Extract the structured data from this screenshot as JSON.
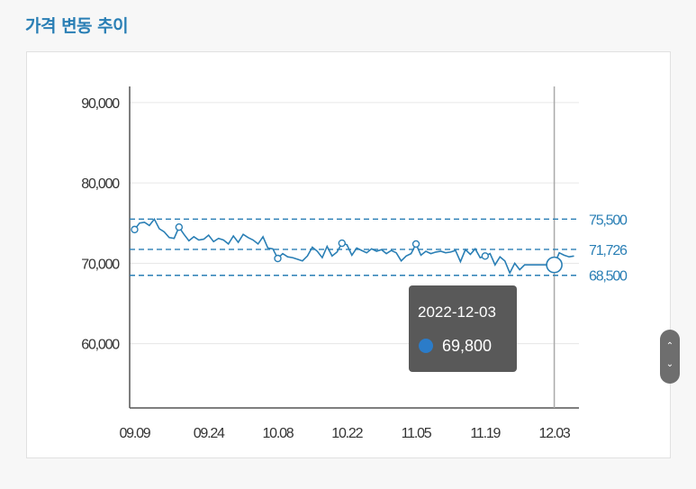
{
  "title": "가격 변동 추이",
  "colors": {
    "line": "#2a7fb5",
    "grid": "#e6e6e6",
    "axis": "#555555",
    "tooltip_bg": "#595959",
    "tooltip_dot": "#2b7cc9"
  },
  "tooltip": {
    "date": "2022-12-03",
    "value": "69,800"
  },
  "scroll_icons": {
    "up": "chevron-up-icon",
    "down": "chevron-down-icon"
  },
  "chart_data": {
    "type": "line",
    "y_ticks": [
      {
        "value": 90000,
        "label": "90,000"
      },
      {
        "value": 80000,
        "label": "80,000"
      },
      {
        "value": 70000,
        "label": "70,000"
      },
      {
        "value": 60000,
        "label": "60,000"
      }
    ],
    "ylim": [
      52000,
      92000
    ],
    "x_ticks": [
      "09.09",
      "09.24",
      "10.08",
      "10.22",
      "11.05",
      "11.19",
      "12.03"
    ],
    "x_tick_dates": [
      "2022-09-09",
      "2022-09-24",
      "2022-10-08",
      "2022-10-22",
      "2022-11-05",
      "2022-11-19",
      "2022-12-03"
    ],
    "xlim": [
      "2022-09-08",
      "2022-12-08"
    ],
    "reference_lines": [
      {
        "value": 75500,
        "label": "75,500"
      },
      {
        "value": 71726,
        "label": "71,726"
      },
      {
        "value": 68500,
        "label": "68,500"
      }
    ],
    "highlight": {
      "date": "2022-12-03",
      "value": 69800
    },
    "series": [
      {
        "points": [
          [
            "2022-09-09",
            74200
          ],
          [
            "2022-09-10",
            75000
          ],
          [
            "2022-09-11",
            75100
          ],
          [
            "2022-09-12",
            74700
          ],
          [
            "2022-09-13",
            75500
          ],
          [
            "2022-09-14",
            74300
          ],
          [
            "2022-09-15",
            73900
          ],
          [
            "2022-09-16",
            73200
          ],
          [
            "2022-09-17",
            73100
          ],
          [
            "2022-09-18",
            74500
          ],
          [
            "2022-09-19",
            73600
          ],
          [
            "2022-09-20",
            72800
          ],
          [
            "2022-09-21",
            73300
          ],
          [
            "2022-09-22",
            72900
          ],
          [
            "2022-09-23",
            73000
          ],
          [
            "2022-09-24",
            73500
          ],
          [
            "2022-09-25",
            72700
          ],
          [
            "2022-09-26",
            73100
          ],
          [
            "2022-09-27",
            72900
          ],
          [
            "2022-09-28",
            72400
          ],
          [
            "2022-09-29",
            73400
          ],
          [
            "2022-09-30",
            72600
          ],
          [
            "2022-10-01",
            73600
          ],
          [
            "2022-10-02",
            73200
          ],
          [
            "2022-10-03",
            72900
          ],
          [
            "2022-10-04",
            72400
          ],
          [
            "2022-10-05",
            73300
          ],
          [
            "2022-10-06",
            71900
          ],
          [
            "2022-10-07",
            71800
          ],
          [
            "2022-10-08",
            70600
          ],
          [
            "2022-10-09",
            71200
          ],
          [
            "2022-10-10",
            70800
          ],
          [
            "2022-10-11",
            70700
          ],
          [
            "2022-10-12",
            70500
          ],
          [
            "2022-10-13",
            70300
          ],
          [
            "2022-10-14",
            70900
          ],
          [
            "2022-10-15",
            72000
          ],
          [
            "2022-10-16",
            71500
          ],
          [
            "2022-10-17",
            70700
          ],
          [
            "2022-10-18",
            72100
          ],
          [
            "2022-10-19",
            70900
          ],
          [
            "2022-10-20",
            71400
          ],
          [
            "2022-10-21",
            72500
          ],
          [
            "2022-10-22",
            72300
          ],
          [
            "2022-10-23",
            71000
          ],
          [
            "2022-10-24",
            71900
          ],
          [
            "2022-10-25",
            71600
          ],
          [
            "2022-10-26",
            71300
          ],
          [
            "2022-10-27",
            71800
          ],
          [
            "2022-10-28",
            71500
          ],
          [
            "2022-10-29",
            71700
          ],
          [
            "2022-10-30",
            71200
          ],
          [
            "2022-10-31",
            71600
          ],
          [
            "2022-11-01",
            71300
          ],
          [
            "2022-11-02",
            70300
          ],
          [
            "2022-11-03",
            70900
          ],
          [
            "2022-11-04",
            71200
          ],
          [
            "2022-11-05",
            72400
          ],
          [
            "2022-11-06",
            71000
          ],
          [
            "2022-11-07",
            71500
          ],
          [
            "2022-11-08",
            71200
          ],
          [
            "2022-11-09",
            71400
          ],
          [
            "2022-11-10",
            71500
          ],
          [
            "2022-11-11",
            71300
          ],
          [
            "2022-11-12",
            71400
          ],
          [
            "2022-11-13",
            71600
          ],
          [
            "2022-11-14",
            70200
          ],
          [
            "2022-11-15",
            71700
          ],
          [
            "2022-11-16",
            71100
          ],
          [
            "2022-11-17",
            71800
          ],
          [
            "2022-11-18",
            70700
          ],
          [
            "2022-11-19",
            70900
          ],
          [
            "2022-11-20",
            71200
          ],
          [
            "2022-11-21",
            69800
          ],
          [
            "2022-11-22",
            70800
          ],
          [
            "2022-11-23",
            70300
          ],
          [
            "2022-11-24",
            68800
          ],
          [
            "2022-11-25",
            70000
          ],
          [
            "2022-11-26",
            69200
          ],
          [
            "2022-11-27",
            69800
          ],
          [
            "2022-11-28",
            69800
          ],
          [
            "2022-11-29",
            69800
          ],
          [
            "2022-11-30",
            69800
          ],
          [
            "2022-12-01",
            69800
          ],
          [
            "2022-12-02",
            69800
          ],
          [
            "2022-12-03",
            69800
          ],
          [
            "2022-12-04",
            71300
          ],
          [
            "2022-12-05",
            71000
          ],
          [
            "2022-12-06",
            70800
          ],
          [
            "2022-12-07",
            70900
          ]
        ],
        "marked_points": [
          "2022-09-09",
          "2022-09-18",
          "2022-10-08",
          "2022-10-21",
          "2022-11-05",
          "2022-11-19"
        ]
      }
    ]
  }
}
